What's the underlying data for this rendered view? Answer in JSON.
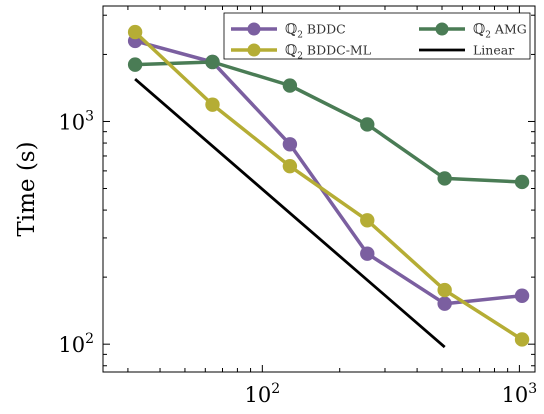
{
  "chart_data": {
    "type": "line",
    "xscale": "log",
    "yscale": "log",
    "xlim": [
      24,
      1150
    ],
    "ylim": [
      75,
      3300
    ],
    "ylabel": "Time (s)",
    "xlabel": "",
    "x_ticks": [
      {
        "value": 100,
        "label": "10",
        "exp": "2"
      },
      {
        "value": 1000,
        "label": "10",
        "exp": "3"
      }
    ],
    "y_ticks": [
      {
        "value": 100,
        "label": "10",
        "exp": "2"
      },
      {
        "value": 1000,
        "label": "10",
        "exp": "3"
      }
    ],
    "grid": false,
    "legend_position": "top-right",
    "series": [
      {
        "name": "Q2 BDDC",
        "q": "ℚ",
        "sub": "2",
        "rest": " BDDC",
        "color": "#7b5fa0",
        "marker": true,
        "x": [
          32,
          64,
          128,
          256,
          512,
          1024
        ],
        "y": [
          2300,
          1850,
          790,
          255,
          152,
          165
        ]
      },
      {
        "name": "Q2 AMG",
        "q": "ℚ",
        "sub": "2",
        "rest": " AMG",
        "color": "#4a7c55",
        "marker": true,
        "x": [
          32,
          64,
          128,
          256,
          512,
          1024
        ],
        "y": [
          1800,
          1850,
          1450,
          970,
          555,
          535
        ]
      },
      {
        "name": "Q2 BDDC-ML",
        "q": "ℚ",
        "sub": "2",
        "rest": " BDDC-ML",
        "color": "#b5ad35",
        "marker": true,
        "x": [
          32,
          64,
          128,
          256,
          512,
          1024
        ],
        "y": [
          2520,
          1190,
          630,
          360,
          175,
          105
        ]
      },
      {
        "name": "Linear",
        "q": "",
        "sub": "",
        "rest": "Linear",
        "color": "#000000",
        "marker": false,
        "x": [
          32,
          512
        ],
        "y": [
          1550,
          97
        ]
      }
    ]
  }
}
